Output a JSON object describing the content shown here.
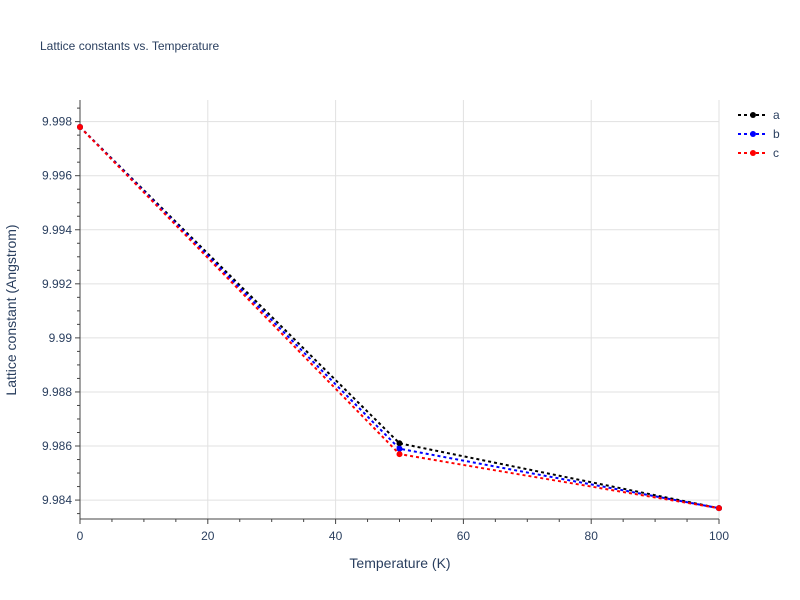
{
  "chart_data": {
    "type": "line",
    "title": "Lattice constants vs. Temperature",
    "xlabel": "Temperature (K)",
    "ylabel": "Lattice constant (Angstrom)",
    "xlim": [
      0,
      100
    ],
    "ylim": [
      9.9833,
      9.9988
    ],
    "x_ticks": [
      0,
      20,
      40,
      60,
      80,
      100
    ],
    "x_tick_labels": [
      "0",
      "20",
      "40",
      "60",
      "80",
      "100"
    ],
    "y_ticks": [
      9.984,
      9.986,
      9.988,
      9.99,
      9.992,
      9.994,
      9.996,
      9.998
    ],
    "y_tick_labels": [
      "9.984",
      "9.986",
      "9.988",
      "9.99",
      "9.992",
      "9.994",
      "9.996",
      "9.998"
    ],
    "x": [
      0,
      50,
      100
    ],
    "series": [
      {
        "name": "a",
        "color": "#000000",
        "values": [
          9.9978,
          9.9861,
          9.9837
        ]
      },
      {
        "name": "b",
        "color": "#0000ff",
        "values": [
          9.9978,
          9.9859,
          9.9837
        ]
      },
      {
        "name": "c",
        "color": "#ff0000",
        "values": [
          9.9978,
          9.9857,
          9.9837
        ]
      }
    ],
    "line_style": "dotted",
    "markers": true,
    "grid": true,
    "legend_position": "top-right"
  }
}
